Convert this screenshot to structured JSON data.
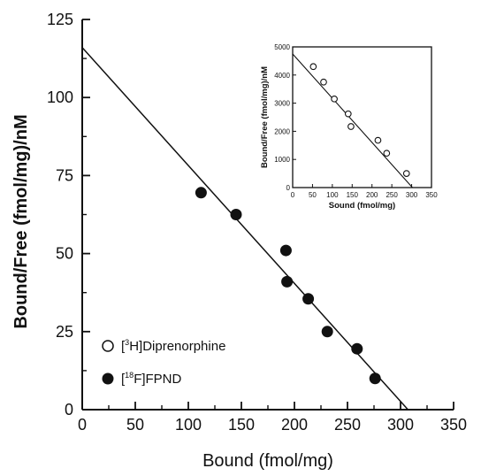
{
  "chart_data": [
    {
      "type": "scatter",
      "title": "",
      "xlabel": "Bound (fmol/mg)",
      "ylabel": "Bound/Free (fmol/mg)/nM",
      "xlim": [
        0,
        350
      ],
      "ylim": [
        0,
        125
      ],
      "xticks": [
        0,
        50,
        100,
        150,
        200,
        250,
        300,
        350
      ],
      "yticks": [
        0,
        25,
        50,
        75,
        100,
        125
      ],
      "grid": false,
      "legend_position": "bottom-left",
      "series": [
        {
          "name": "[18F]FPND",
          "marker": "filled-circle",
          "x": [
            112,
            145,
            192,
            193,
            213,
            231,
            259,
            276
          ],
          "y": [
            69.5,
            62.5,
            51,
            41,
            35.5,
            25,
            19.5,
            10
          ]
        }
      ],
      "fit_line": {
        "x": [
          0,
          307
        ],
        "y": [
          116,
          0
        ]
      },
      "legend": [
        {
          "pre": "[",
          "sup": "3",
          "post": "H]Diprenorphine",
          "marker": "open-circle"
        },
        {
          "pre": "[",
          "sup": "18",
          "post": "F]FPND",
          "marker": "filled-circle"
        }
      ]
    },
    {
      "type": "scatter",
      "title": "",
      "xlabel": "Sound (fmol/mg)",
      "ylabel": "Bound/Free (fmol/mg)/nM",
      "xlim": [
        0,
        350
      ],
      "ylim": [
        0,
        5000
      ],
      "xticks": [
        0,
        50,
        100,
        150,
        200,
        250,
        300,
        350
      ],
      "yticks": [
        0,
        1000,
        2000,
        3000,
        4000,
        5000
      ],
      "grid": false,
      "series": [
        {
          "name": "[3H]Diprenorphine",
          "marker": "open-circle",
          "x": [
            52,
            78,
            105,
            140,
            147,
            215,
            237,
            287
          ],
          "y": [
            4300,
            3750,
            3150,
            2620,
            2170,
            1680,
            1220,
            500
          ]
        }
      ],
      "fit_line": {
        "x": [
          0,
          302
        ],
        "y": [
          4750,
          0
        ]
      }
    }
  ]
}
